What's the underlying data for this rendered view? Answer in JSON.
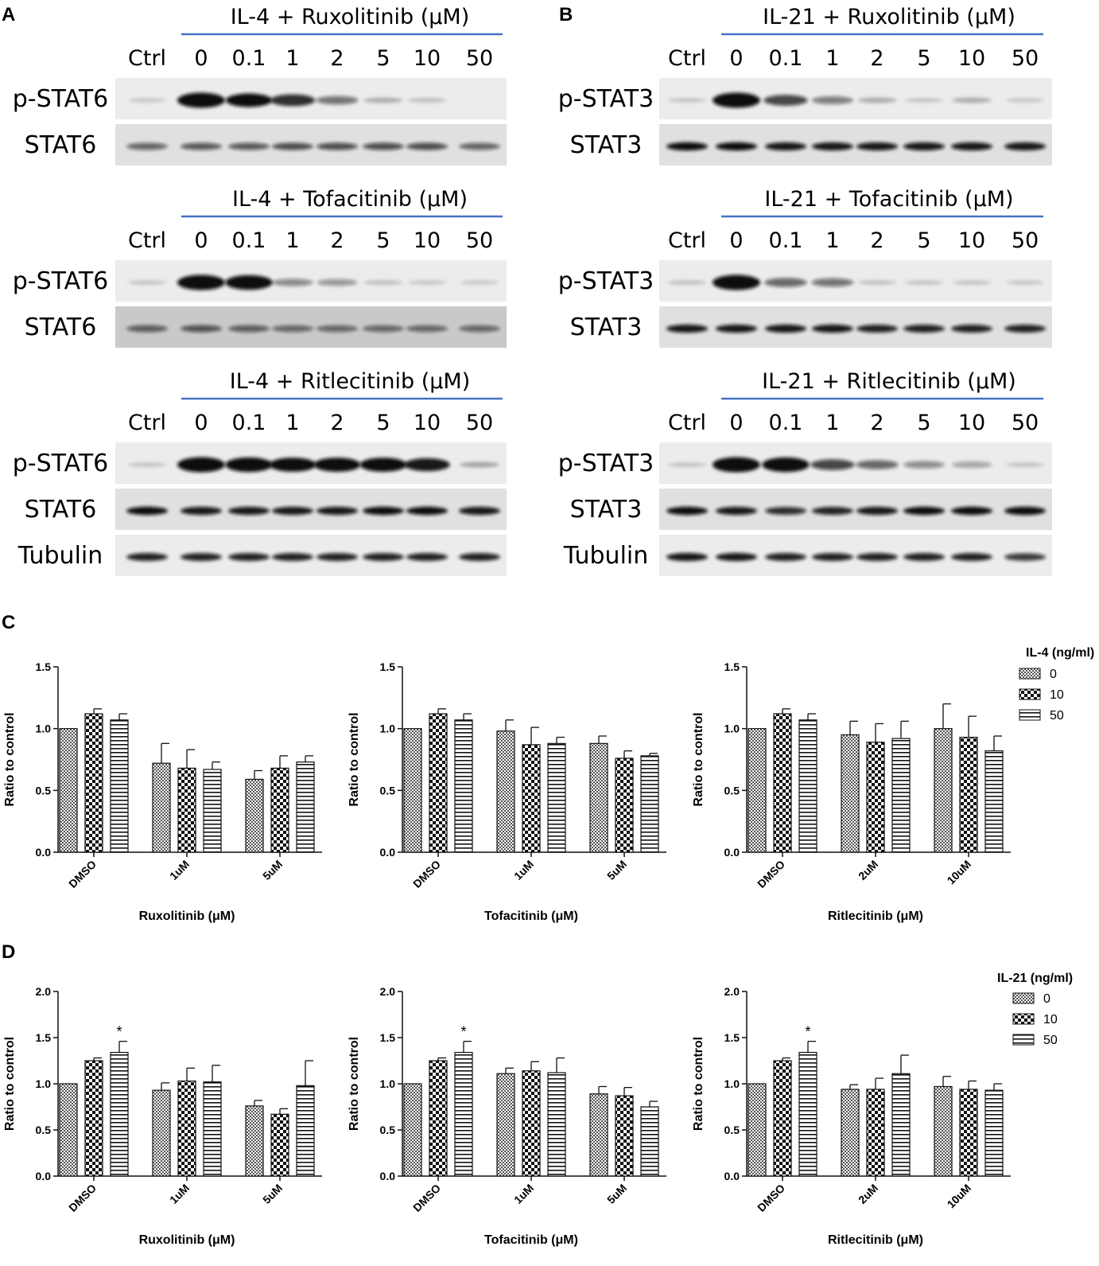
{
  "panels": {
    "A": {
      "letter": "A",
      "blots": [
        {
          "title": "IL-4 + Ruxolitinib (μM)",
          "lanes": [
            "Ctrl",
            "0",
            "0.1",
            "1",
            "2",
            "5",
            "10",
            "50"
          ],
          "rows": [
            {
              "label": "p-STAT6",
              "intensity": [
                0.02,
                1.0,
                0.85,
                0.7,
                0.4,
                0.12,
                0.05,
                0.0
              ]
            },
            {
              "label": "STAT6",
              "intensity": [
                0.45,
                0.5,
                0.5,
                0.55,
                0.55,
                0.55,
                0.55,
                0.45
              ]
            }
          ]
        },
        {
          "title": "IL-4 + Tofacitinib (μM)",
          "lanes": [
            "Ctrl",
            "0",
            "0.1",
            "1",
            "2",
            "5",
            "10",
            "50"
          ],
          "rows": [
            {
              "label": "p-STAT6",
              "intensity": [
                0.03,
                1.0,
                0.95,
                0.3,
                0.25,
                0.05,
                0.02,
                0.01
              ]
            },
            {
              "label": "STAT6",
              "intensity": [
                0.45,
                0.5,
                0.45,
                0.4,
                0.4,
                0.4,
                0.4,
                0.4
              ]
            }
          ]
        },
        {
          "title": "IL-4 + Ritlecitinib (μM)",
          "lanes": [
            "Ctrl",
            "0",
            "0.1",
            "1",
            "2",
            "5",
            "10",
            "50"
          ],
          "rows": [
            {
              "label": "p-STAT6",
              "intensity": [
                0.03,
                1.0,
                0.95,
                0.9,
                0.9,
                0.9,
                0.8,
                0.15
              ]
            },
            {
              "label": "STAT6",
              "intensity": [
                0.85,
                0.8,
                0.8,
                0.8,
                0.8,
                0.85,
                0.85,
                0.8
              ]
            },
            {
              "label": "Tubulin",
              "intensity": [
                0.75,
                0.75,
                0.75,
                0.75,
                0.75,
                0.75,
                0.75,
                0.75
              ]
            }
          ]
        }
      ]
    },
    "B": {
      "letter": "B",
      "blots": [
        {
          "title": "IL-21 + Ruxolitinib (μM)",
          "lanes": [
            "Ctrl",
            "0",
            "0.1",
            "1",
            "2",
            "5",
            "10",
            "50"
          ],
          "rows": [
            {
              "label": "p-STAT3",
              "intensity": [
                0.03,
                1.0,
                0.6,
                0.35,
                0.12,
                0.03,
                0.12,
                0.02
              ]
            },
            {
              "label": "STAT3",
              "intensity": [
                0.85,
                0.85,
                0.8,
                0.8,
                0.8,
                0.8,
                0.8,
                0.8
              ]
            }
          ]
        },
        {
          "title": "IL-21 + Tofacitinib (μM)",
          "lanes": [
            "Ctrl",
            "0",
            "0.1",
            "1",
            "2",
            "5",
            "10",
            "50"
          ],
          "rows": [
            {
              "label": "p-STAT3",
              "intensity": [
                0.04,
                1.0,
                0.45,
                0.4,
                0.04,
                0.03,
                0.03,
                0.02
              ]
            },
            {
              "label": "STAT3",
              "intensity": [
                0.8,
                0.8,
                0.8,
                0.8,
                0.75,
                0.75,
                0.75,
                0.75
              ]
            }
          ]
        },
        {
          "title": "IL-21 + Ritlecitinib (μM)",
          "lanes": [
            "Ctrl",
            "0",
            "0.1",
            "1",
            "2",
            "5",
            "10",
            "50"
          ],
          "rows": [
            {
              "label": "p-STAT3",
              "intensity": [
                0.03,
                1.0,
                0.95,
                0.6,
                0.45,
                0.3,
                0.2,
                0.03
              ]
            },
            {
              "label": "STAT3",
              "intensity": [
                0.85,
                0.8,
                0.7,
                0.75,
                0.8,
                0.85,
                0.85,
                0.9
              ]
            },
            {
              "label": "Tubulin",
              "intensity": [
                0.8,
                0.8,
                0.75,
                0.75,
                0.75,
                0.75,
                0.75,
                0.65
              ]
            }
          ]
        }
      ]
    },
    "C": {
      "letter": "C",
      "legend_title": "IL-4 (ng/ml)",
      "legend_items": [
        "0",
        "10",
        "50"
      ]
    },
    "D": {
      "letter": "D",
      "legend_title": "IL-21 (ng/ml)",
      "legend_items": [
        "0",
        "10",
        "50"
      ]
    }
  },
  "chart_data": [
    {
      "type": "bar",
      "panel": "C",
      "ylabel": "Ratio to control",
      "xlabel": "Ruxolitinib (μM)",
      "ylim": [
        0,
        1.5
      ],
      "yticks": [
        "0.0",
        "0.5",
        "1.0",
        "1.5"
      ],
      "categories": [
        "DMSO",
        "1uM",
        "5uM"
      ],
      "series": [
        {
          "name": "0",
          "values": [
            1.0,
            0.72,
            0.59
          ],
          "errors": [
            0,
            0.16,
            0.07
          ]
        },
        {
          "name": "10",
          "values": [
            1.12,
            0.68,
            0.68
          ],
          "errors": [
            0.04,
            0.15,
            0.1
          ]
        },
        {
          "name": "50",
          "values": [
            1.07,
            0.67,
            0.73
          ],
          "errors": [
            0.05,
            0.06,
            0.05
          ]
        }
      ]
    },
    {
      "type": "bar",
      "panel": "C",
      "ylabel": "Ratio to control",
      "xlabel": "Tofacitinib (μM)",
      "ylim": [
        0,
        1.5
      ],
      "yticks": [
        "0.0",
        "0.5",
        "1.0",
        "1.5"
      ],
      "categories": [
        "DMSO",
        "1uM",
        "5uM"
      ],
      "series": [
        {
          "name": "0",
          "values": [
            1.0,
            0.98,
            0.88
          ],
          "errors": [
            0,
            0.09,
            0.06
          ]
        },
        {
          "name": "10",
          "values": [
            1.12,
            0.87,
            0.76
          ],
          "errors": [
            0.04,
            0.14,
            0.06
          ]
        },
        {
          "name": "50",
          "values": [
            1.07,
            0.88,
            0.78
          ],
          "errors": [
            0.05,
            0.05,
            0.02
          ]
        }
      ]
    },
    {
      "type": "bar",
      "panel": "C",
      "ylabel": "Ratio to control",
      "xlabel": "Ritlecitinib  (μM)",
      "ylim": [
        0,
        1.5
      ],
      "yticks": [
        "0.0",
        "0.5",
        "1.0",
        "1.5"
      ],
      "categories": [
        "DMSO",
        "2uM",
        "10uM"
      ],
      "series": [
        {
          "name": "0",
          "values": [
            1.0,
            0.95,
            1.0
          ],
          "errors": [
            0,
            0.11,
            0.2
          ]
        },
        {
          "name": "10",
          "values": [
            1.12,
            0.89,
            0.93
          ],
          "errors": [
            0.04,
            0.15,
            0.17
          ]
        },
        {
          "name": "50",
          "values": [
            1.07,
            0.92,
            0.82
          ],
          "errors": [
            0.05,
            0.14,
            0.12
          ]
        }
      ]
    },
    {
      "type": "bar",
      "panel": "D",
      "ylabel": "Ratio to control",
      "xlabel": "Ruxolitinib (μM)",
      "ylim": [
        0,
        2.0
      ],
      "yticks": [
        "0.0",
        "0.5",
        "1.0",
        "1.5",
        "2.0"
      ],
      "categories": [
        "DMSO",
        "1uM",
        "5uM"
      ],
      "series": [
        {
          "name": "0",
          "values": [
            1.0,
            0.93,
            0.76
          ],
          "errors": [
            0,
            0.08,
            0.06
          ]
        },
        {
          "name": "10",
          "values": [
            1.25,
            1.03,
            0.67
          ],
          "errors": [
            0.03,
            0.14,
            0.06
          ]
        },
        {
          "name": "50",
          "values": [
            1.34,
            1.02,
            0.98
          ],
          "errors": [
            0.12,
            0.18,
            0.27
          ]
        }
      ],
      "annotations": [
        {
          "category": "DMSO",
          "series": "50",
          "text": "*"
        }
      ]
    },
    {
      "type": "bar",
      "panel": "D",
      "ylabel": "Ratio to control",
      "xlabel": "Tofacitinib (μM)",
      "ylim": [
        0,
        2.0
      ],
      "yticks": [
        "0.0",
        "0.5",
        "1.0",
        "1.5",
        "2.0"
      ],
      "categories": [
        "DMSO",
        "1uM",
        "5uM"
      ],
      "series": [
        {
          "name": "0",
          "values": [
            1.0,
            1.11,
            0.89
          ],
          "errors": [
            0,
            0.06,
            0.08
          ]
        },
        {
          "name": "10",
          "values": [
            1.25,
            1.14,
            0.87
          ],
          "errors": [
            0.03,
            0.1,
            0.09
          ]
        },
        {
          "name": "50",
          "values": [
            1.34,
            1.12,
            0.75
          ],
          "errors": [
            0.12,
            0.16,
            0.06
          ]
        }
      ],
      "annotations": [
        {
          "category": "DMSO",
          "series": "50",
          "text": "*"
        }
      ]
    },
    {
      "type": "bar",
      "panel": "D",
      "ylabel": "Ratio to control",
      "xlabel": "Ritlecitinib  (μM)",
      "ylim": [
        0,
        2.0
      ],
      "yticks": [
        "0.0",
        "0.5",
        "1.0",
        "1.5",
        "2.0"
      ],
      "categories": [
        "DMSO",
        "2uM",
        "10uM"
      ],
      "series": [
        {
          "name": "0",
          "values": [
            1.0,
            0.94,
            0.97
          ],
          "errors": [
            0,
            0.05,
            0.11
          ]
        },
        {
          "name": "10",
          "values": [
            1.25,
            0.94,
            0.94
          ],
          "errors": [
            0.03,
            0.12,
            0.09
          ]
        },
        {
          "name": "50",
          "values": [
            1.34,
            1.11,
            0.93
          ],
          "errors": [
            0.12,
            0.2,
            0.07
          ]
        }
      ],
      "annotations": [
        {
          "category": "DMSO",
          "series": "50",
          "text": "*"
        }
      ]
    }
  ],
  "colors": {
    "title_underline": "#4472c4",
    "band": "#111111",
    "axis": "#111111"
  }
}
